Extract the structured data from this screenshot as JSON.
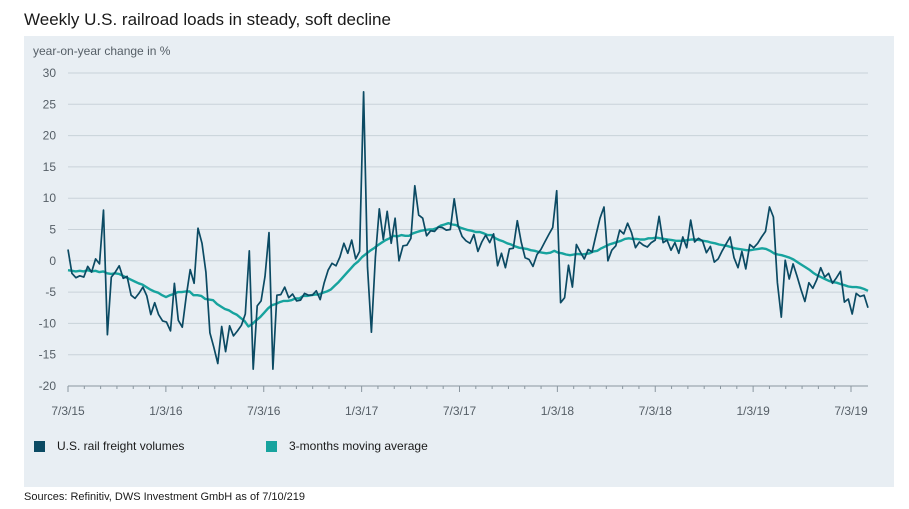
{
  "title": "Weekly U.S. railroad loads in steady, soft decline",
  "source": "Sources: Refinitiv, DWS Investment GmbH as of 7/10/219",
  "colors": {
    "volumes": "#0b4a63",
    "average": "#17a39e",
    "panel": "#e8eef3",
    "grid": "#c9d2d9"
  },
  "chart_data": {
    "type": "line",
    "title": "Weekly U.S. railroad loads in steady, soft decline",
    "ylabel": "year-on-year change in %",
    "xlabel": "",
    "ylim": [
      -20,
      30
    ],
    "yticks": [
      30,
      25,
      20,
      15,
      10,
      5,
      0,
      -5,
      -10,
      -15,
      -20
    ],
    "xticks": [
      "7/3/15",
      "1/3/16",
      "7/3/16",
      "1/3/17",
      "7/3/17",
      "1/3/18",
      "7/3/18",
      "1/3/19",
      "7/3/19"
    ],
    "x_start": "7/3/15",
    "x_end": "7/3/19",
    "legend_position": "bottom-left",
    "grid": true,
    "series": [
      {
        "name": "U.S. rail freight volumes",
        "color": "#0b4a63",
        "values": [
          1.8,
          -2.0,
          -2.7,
          -2.4,
          -2.6,
          -0.9,
          -1.8,
          0.3,
          -0.5,
          8.1,
          -11.8,
          -2.6,
          -1.8,
          -0.8,
          -2.8,
          -2.5,
          -5.5,
          -6.0,
          -5.2,
          -4.2,
          -5.6,
          -8.6,
          -6.7,
          -8.6,
          -9.6,
          -9.8,
          -11.2,
          -3.6,
          -9.5,
          -10.6,
          -5.7,
          -1.4,
          -3.6,
          5.2,
          2.8,
          -1.8,
          -11.5,
          -13.8,
          -16.4,
          -10.5,
          -14.5,
          -10.4,
          -12.0,
          -11.2,
          -10.3,
          -8.5,
          1.6,
          -17.3,
          -7.2,
          -6.4,
          -2.5,
          4.5,
          -17.3,
          -5.5,
          -5.4,
          -4.2,
          -5.9,
          -5.3,
          -6.4,
          -6.3,
          -5.2,
          -5.5,
          -5.5,
          -4.8,
          -6.2,
          -3.5,
          -1.5,
          -0.4,
          -0.8,
          0.6,
          2.8,
          1.2,
          3.3,
          0.3,
          1.5,
          27.0,
          -1.0,
          -11.4,
          0.6,
          8.3,
          3.4,
          7.9,
          2.8,
          6.8,
          0.0,
          2.4,
          2.5,
          3.6,
          12.0,
          7.3,
          6.8,
          4.0,
          4.8,
          4.7,
          5.4,
          5.3,
          4.9,
          5.0,
          9.9,
          5.6,
          3.9,
          3.2,
          2.8,
          4.2,
          1.5,
          3.0,
          4.1,
          2.9,
          4.3,
          -0.8,
          1.2,
          -1.1,
          1.9,
          2.0,
          6.4,
          3.0,
          0.5,
          0.2,
          -0.9,
          1.0,
          1.8,
          3.0,
          4.2,
          5.3,
          11.2,
          -6.7,
          -5.9,
          -0.7,
          -4.2,
          2.6,
          1.4,
          0.3,
          1.8,
          1.4,
          4.2,
          6.8,
          8.6,
          0.0,
          1.7,
          2.4,
          4.9,
          4.3,
          6.0,
          4.5,
          2.1,
          3.0,
          2.5,
          2.2,
          2.9,
          3.3,
          7.1,
          2.9,
          3.3,
          1.7,
          2.9,
          1.2,
          3.8,
          2.1,
          6.5,
          3.0,
          3.6,
          3.2,
          1.3,
          2.3,
          -0.2,
          0.3,
          1.6,
          2.7,
          3.8,
          0.5,
          -1.1,
          1.5,
          -1.3,
          2.6,
          2.1,
          2.8,
          3.8,
          4.7,
          8.6,
          7.0,
          -3.5,
          -9.0,
          0.1,
          -2.9,
          -0.5,
          -2.5,
          -4.6,
          -6.5,
          -3.5,
          -4.4,
          -3.0,
          -1.1,
          -2.6,
          -2.0,
          -3.6,
          -2.7,
          -1.7,
          -6.6,
          -6.1,
          -8.5,
          -5.2,
          -5.7,
          -5.5,
          -7.5
        ]
      },
      {
        "name": "3-months moving average",
        "color": "#17a39e",
        "values": [
          -1.5,
          -1.6,
          -1.7,
          -1.6,
          -1.7,
          -1.5,
          -1.7,
          -1.6,
          -1.8,
          -1.7,
          -2.0,
          -2.1,
          -2.0,
          -2.1,
          -2.4,
          -2.7,
          -3.0,
          -3.3,
          -3.6,
          -3.8,
          -4.2,
          -4.6,
          -4.9,
          -5.1,
          -5.5,
          -5.8,
          -5.5,
          -5.3,
          -5.0,
          -5.0,
          -4.9,
          -4.9,
          -5.5,
          -5.5,
          -5.6,
          -6.1,
          -6.2,
          -6.3,
          -6.9,
          -7.3,
          -7.7,
          -7.9,
          -8.3,
          -8.6,
          -9.1,
          -9.6,
          -10.5,
          -10.1,
          -9.5,
          -9.0,
          -8.3,
          -7.6,
          -7.1,
          -6.9,
          -6.6,
          -6.4,
          -6.4,
          -6.3,
          -6.0,
          -6.0,
          -5.6,
          -5.6,
          -5.5,
          -5.4,
          -5.4,
          -5.1,
          -4.9,
          -4.6,
          -4.0,
          -3.4,
          -2.7,
          -2.0,
          -1.3,
          -0.6,
          -0.1,
          0.6,
          1.1,
          1.6,
          2.0,
          2.5,
          2.9,
          3.3,
          3.6,
          4.0,
          3.9,
          4.1,
          4.0,
          4.0,
          4.4,
          4.6,
          4.8,
          4.9,
          5.0,
          5.0,
          5.2,
          5.6,
          5.8,
          6.0,
          5.8,
          5.7,
          5.3,
          5.1,
          4.9,
          4.8,
          4.6,
          4.6,
          4.4,
          4.1,
          4.1,
          3.6,
          3.3,
          3.1,
          2.8,
          2.6,
          2.3,
          2.1,
          2.0,
          1.9,
          1.7,
          1.6,
          1.4,
          1.3,
          1.2,
          1.3,
          1.6,
          1.3,
          1.2,
          1.0,
          0.9,
          1.0,
          1.1,
          1.0,
          1.1,
          1.2,
          1.5,
          1.6,
          2.0,
          2.3,
          2.6,
          2.8,
          3.0,
          3.2,
          3.5,
          3.6,
          3.5,
          3.5,
          3.4,
          3.4,
          3.6,
          3.6,
          3.7,
          3.6,
          3.5,
          3.4,
          3.3,
          3.2,
          3.2,
          3.2,
          3.3,
          3.4,
          3.4,
          3.3,
          3.2,
          3.1,
          2.9,
          2.8,
          2.6,
          2.5,
          2.4,
          2.2,
          2.0,
          1.9,
          1.8,
          1.7,
          1.7,
          1.8,
          1.9,
          2.0,
          1.9,
          1.6,
          1.2,
          1.0,
          0.9,
          0.7,
          0.5,
          0.2,
          -0.2,
          -0.6,
          -1.0,
          -1.4,
          -1.9,
          -2.3,
          -2.6,
          -2.9,
          -3.2,
          -3.4,
          -3.5,
          -3.7,
          -3.9,
          -4.1,
          -4.2,
          -4.2,
          -4.3,
          -4.5,
          -4.8
        ]
      }
    ]
  }
}
